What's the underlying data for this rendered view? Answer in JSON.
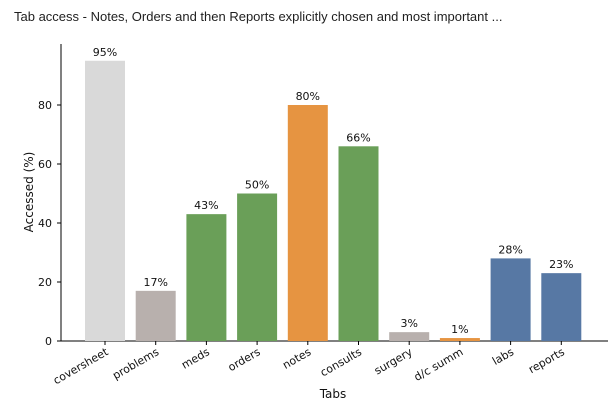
{
  "chart_data": {
    "type": "bar",
    "title": "Tab access - Notes, Orders and then Reports explicitly chosen and most important ...",
    "xlabel": "Tabs",
    "ylabel": "Accessed (%)",
    "ylim": [
      0,
      100
    ],
    "yticks": [
      0,
      20,
      40,
      60,
      80
    ],
    "grid": false,
    "categories": [
      "coversheet",
      "problems",
      "meds",
      "orders",
      "notes",
      "consults",
      "surgery",
      "d/c summ",
      "labs",
      "reports"
    ],
    "values": [
      95,
      17,
      43,
      50,
      80,
      66,
      3,
      1,
      28,
      23
    ],
    "data_labels": [
      "95%",
      "17%",
      "43%",
      "50%",
      "80%",
      "66%",
      "3%",
      "1%",
      "28%",
      "23%"
    ],
    "colors": [
      "#d9d9d9",
      "#b8b0ad",
      "#6a9f58",
      "#6a9f58",
      "#e69441",
      "#6a9f58",
      "#b8b0ad",
      "#e69441",
      "#5778a4",
      "#5778a4"
    ]
  }
}
